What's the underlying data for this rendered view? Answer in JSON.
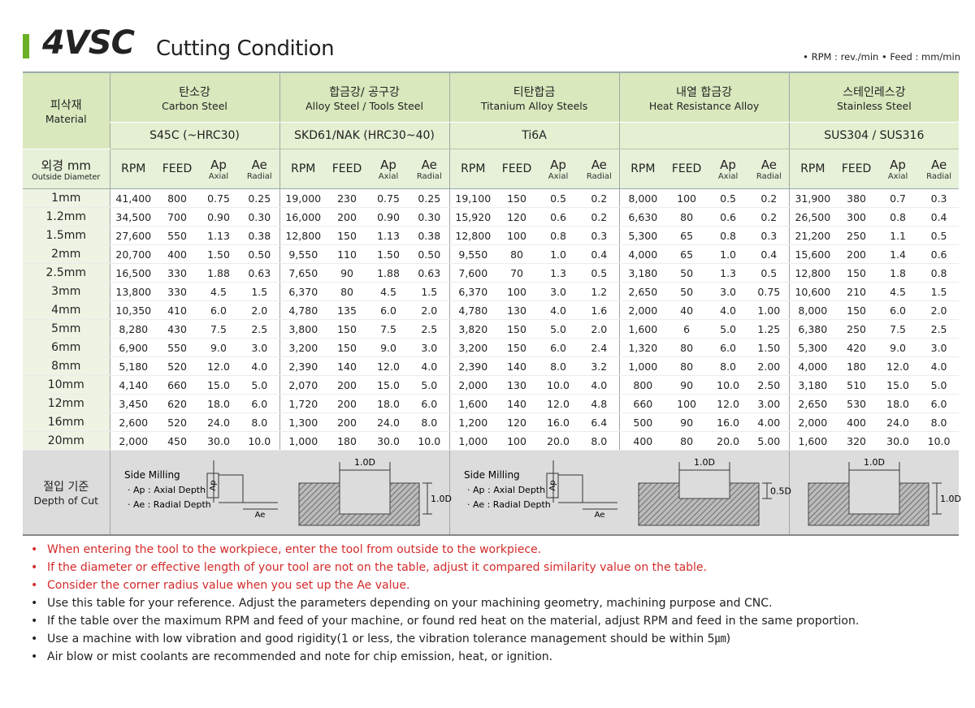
{
  "header": {
    "title_code": "4VSC",
    "title": "Cutting Condition",
    "units": "• RPM : rev./min • Feed : mm/min"
  },
  "table": {
    "material_ko": "피삭재",
    "material_en": "Material",
    "diameter_ko": "외경 mm",
    "diameter_en": "Outside Diameter",
    "groups": [
      {
        "name_ko": "탄소강",
        "name_en": "Carbon Steel",
        "grade": "S45C (~HRC30)"
      },
      {
        "name_ko": "합금강/ 공구강",
        "name_en": "Alloy Steel / Tools Steel",
        "grade": "SKD61/NAK (HRC30~40)"
      },
      {
        "name_ko": "티탄합금",
        "name_en": "Titanium Alloy Steels",
        "grade": "Ti6A"
      },
      {
        "name_ko": "내열 합금강",
        "name_en": "Heat Resistance Alloy"
      },
      {
        "name_ko": "스테인레스강",
        "name_en": "Stainless Steel",
        "grade": "SUS304 / SUS316"
      }
    ],
    "columns": [
      {
        "label": "RPM"
      },
      {
        "label": "FEED"
      },
      {
        "label": "Ap",
        "sub": "Axial"
      },
      {
        "label": "Ae",
        "sub": "Radial"
      }
    ],
    "rows": [
      {
        "diameter": "1mm",
        "values": [
          "41,400",
          "800",
          "0.75",
          "0.25",
          "19,000",
          "230",
          "0.75",
          "0.25",
          "19,100",
          "150",
          "0.5",
          "0.2",
          "8,000",
          "100",
          "0.5",
          "0.2",
          "31,900",
          "380",
          "0.7",
          "0.3"
        ]
      },
      {
        "diameter": "1.2mm",
        "values": [
          "34,500",
          "700",
          "0.90",
          "0.30",
          "16,000",
          "200",
          "0.90",
          "0.30",
          "15,920",
          "120",
          "0.6",
          "0.2",
          "6,630",
          "80",
          "0.6",
          "0.2",
          "26,500",
          "300",
          "0.8",
          "0.4"
        ]
      },
      {
        "diameter": "1.5mm",
        "values": [
          "27,600",
          "550",
          "1.13",
          "0.38",
          "12,800",
          "150",
          "1.13",
          "0.38",
          "12,800",
          "100",
          "0.8",
          "0.3",
          "5,300",
          "65",
          "0.8",
          "0.3",
          "21,200",
          "250",
          "1.1",
          "0.5"
        ]
      },
      {
        "diameter": "2mm",
        "values": [
          "20,700",
          "400",
          "1.50",
          "0.50",
          "9,550",
          "110",
          "1.50",
          "0.50",
          "9,550",
          "80",
          "1.0",
          "0.4",
          "4,000",
          "65",
          "1.0",
          "0.4",
          "15,600",
          "200",
          "1.4",
          "0.6"
        ]
      },
      {
        "diameter": "2.5mm",
        "values": [
          "16,500",
          "330",
          "1.88",
          "0.63",
          "7,650",
          "90",
          "1.88",
          "0.63",
          "7,600",
          "70",
          "1.3",
          "0.5",
          "3,180",
          "50",
          "1.3",
          "0.5",
          "12,800",
          "150",
          "1.8",
          "0.8"
        ]
      },
      {
        "diameter": "3mm",
        "values": [
          "13,800",
          "330",
          "4.5",
          "1.5",
          "6,370",
          "80",
          "4.5",
          "1.5",
          "6,370",
          "100",
          "3.0",
          "1.2",
          "2,650",
          "50",
          "3.0",
          "0.75",
          "10,600",
          "210",
          "4.5",
          "1.5"
        ]
      },
      {
        "diameter": "4mm",
        "values": [
          "10,350",
          "410",
          "6.0",
          "2.0",
          "4,780",
          "135",
          "6.0",
          "2.0",
          "4,780",
          "130",
          "4.0",
          "1.6",
          "2,000",
          "40",
          "4.0",
          "1.00",
          "8,000",
          "150",
          "6.0",
          "2.0"
        ]
      },
      {
        "diameter": "5mm",
        "values": [
          "8,280",
          "430",
          "7.5",
          "2.5",
          "3,800",
          "150",
          "7.5",
          "2.5",
          "3,820",
          "150",
          "5.0",
          "2.0",
          "1,600",
          "6",
          "5.0",
          "1.25",
          "6,380",
          "250",
          "7.5",
          "2.5"
        ]
      },
      {
        "diameter": "6mm",
        "values": [
          "6,900",
          "550",
          "9.0",
          "3.0",
          "3,200",
          "150",
          "9.0",
          "3.0",
          "3,200",
          "150",
          "6.0",
          "2.4",
          "1,320",
          "80",
          "6.0",
          "1.50",
          "5,300",
          "420",
          "9.0",
          "3.0"
        ]
      },
      {
        "diameter": "8mm",
        "values": [
          "5,180",
          "520",
          "12.0",
          "4.0",
          "2,390",
          "140",
          "12.0",
          "4.0",
          "2,390",
          "140",
          "8.0",
          "3.2",
          "1,000",
          "80",
          "8.0",
          "2.00",
          "4,000",
          "180",
          "12.0",
          "4.0"
        ]
      },
      {
        "diameter": "10mm",
        "values": [
          "4,140",
          "660",
          "15.0",
          "5.0",
          "2,070",
          "200",
          "15.0",
          "5.0",
          "2,000",
          "130",
          "10.0",
          "4.0",
          "800",
          "90",
          "10.0",
          "2.50",
          "3,180",
          "510",
          "15.0",
          "5.0"
        ]
      },
      {
        "diameter": "12mm",
        "values": [
          "3,450",
          "620",
          "18.0",
          "6.0",
          "1,720",
          "200",
          "18.0",
          "6.0",
          "1,600",
          "140",
          "12.0",
          "4.8",
          "660",
          "100",
          "12.0",
          "3.00",
          "2,650",
          "530",
          "18.0",
          "6.0"
        ]
      },
      {
        "diameter": "16mm",
        "values": [
          "2,600",
          "520",
          "24.0",
          "8.0",
          "1,300",
          "200",
          "24.0",
          "8.0",
          "1,200",
          "120",
          "16.0",
          "6.4",
          "500",
          "90",
          "16.0",
          "4.00",
          "2,000",
          "400",
          "24.0",
          "8.0"
        ]
      },
      {
        "diameter": "20mm",
        "values": [
          "2,000",
          "450",
          "30.0",
          "10.0",
          "1,000",
          "180",
          "30.0",
          "10.0",
          "1,000",
          "100",
          "20.0",
          "8.0",
          "400",
          "80",
          "20.0",
          "5.00",
          "1,600",
          "320",
          "30.0",
          "10.0"
        ]
      }
    ],
    "depth": {
      "label_ko": "절입 기준",
      "label_en": "Depth of Cut",
      "side_milling": {
        "title": "Side Milling",
        "ap": "· Ap : Axial Depth",
        "ae": "· Ae : Radial Depth",
        "ap_symbol": "Ap",
        "ae_symbol": "Ae"
      },
      "slots": [
        {
          "width": "1.0D",
          "depth": "1.0D"
        },
        {
          "width": "1.0D",
          "depth": "0.5D"
        },
        {
          "width": "1.0D",
          "depth": "1.0D"
        }
      ]
    }
  },
  "notes": [
    {
      "text": "When entering the tool to the workpiece, enter the tool from outside to the workpiece.",
      "color": "#d42a2a"
    },
    {
      "text": "If the diameter or effective length of your tool are not on the table, adjust it compared similarity value on the table.",
      "color": "#d42a2a"
    },
    {
      "text": "Consider the corner radius value when you set up the Ae value.",
      "color": "#d42a2a"
    },
    {
      "text": "Use this table for your reference. Adjust the parameters depending on your machining geometry, machining purpose and CNC.",
      "color": "#222222"
    },
    {
      "text": "If the table over the maximum RPM and feed of your machine, or found red heat on the material, adjust RPM and feed in the same proportion.",
      "color": "#222222"
    },
    {
      "text": "Use a machine with low vibration and good rigidity(1 or less, the vibration tolerance management should be within 5㎛)",
      "color": "#222222"
    },
    {
      "text": "Air blow or mist coolants are recommended and note for chip emission, heat, or ignition.",
      "color": "#222222"
    }
  ]
}
